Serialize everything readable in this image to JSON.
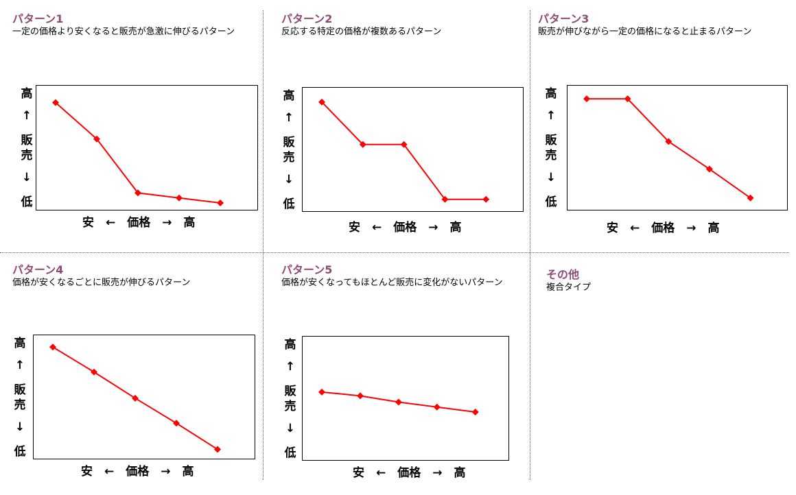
{
  "colors": {
    "title": "#8e4a72",
    "line": "#ff0000"
  },
  "axis_labels": {
    "y": [
      "高",
      "↑",
      "販",
      "売",
      "↓",
      "低"
    ],
    "x": "安　←　価格　→　高"
  },
  "chart_data": [
    {
      "type": "line",
      "title": "パターン1",
      "description": "一定の価格より安くなると販売が急激に伸びるパターン",
      "xlabel": "安 ← 価格 → 高",
      "ylabel": "高 ↑ 販売 ↓ 低",
      "x": [
        1,
        2,
        3,
        4,
        5
      ],
      "values": [
        8.6,
        5.7,
        1.4,
        1.0,
        0.6
      ],
      "ylim": [
        0,
        10
      ]
    },
    {
      "type": "line",
      "title": "パターン2",
      "description": "反応する特定の価格が複数あるパターン",
      "xlabel": "安 ← 価格 → 高",
      "ylabel": "高 ↑ 販売 ↓ 低",
      "x": [
        1,
        2,
        3,
        4,
        5
      ],
      "values": [
        8.8,
        5.4,
        5.4,
        1.0,
        1.0
      ],
      "ylim": [
        0,
        10
      ]
    },
    {
      "type": "line",
      "title": "パターン3",
      "description": "販売が伸びながら一定の価格になると止まるパターン",
      "xlabel": "安 ← 価格 → 高",
      "ylabel": "高 ↑ 販売 ↓ 低",
      "x": [
        1,
        2,
        3,
        4,
        5
      ],
      "values": [
        8.9,
        8.9,
        5.5,
        3.3,
        1.0
      ],
      "ylim": [
        0,
        10
      ]
    },
    {
      "type": "line",
      "title": "パターン4",
      "description": "価格が安くなるごとに販売が伸びるパターン",
      "xlabel": "安 ← 価格 → 高",
      "ylabel": "高 ↑ 販売 ↓ 低",
      "x": [
        1,
        2,
        3,
        4,
        5
      ],
      "values": [
        9.0,
        7.0,
        4.9,
        2.9,
        0.8
      ],
      "ylim": [
        0,
        10
      ]
    },
    {
      "type": "line",
      "title": "パターン5",
      "description": "価格が安くなってもほとんど販売に変化がないパターン",
      "xlabel": "安 ← 価格 → 高",
      "ylabel": "高 ↑ 販売 ↓ 低",
      "x": [
        1,
        2,
        3,
        4,
        5
      ],
      "values": [
        5.5,
        5.2,
        4.7,
        4.3,
        3.9
      ],
      "ylim": [
        0,
        10
      ]
    }
  ],
  "other": {
    "title": "その他",
    "description": "複合タイプ"
  }
}
